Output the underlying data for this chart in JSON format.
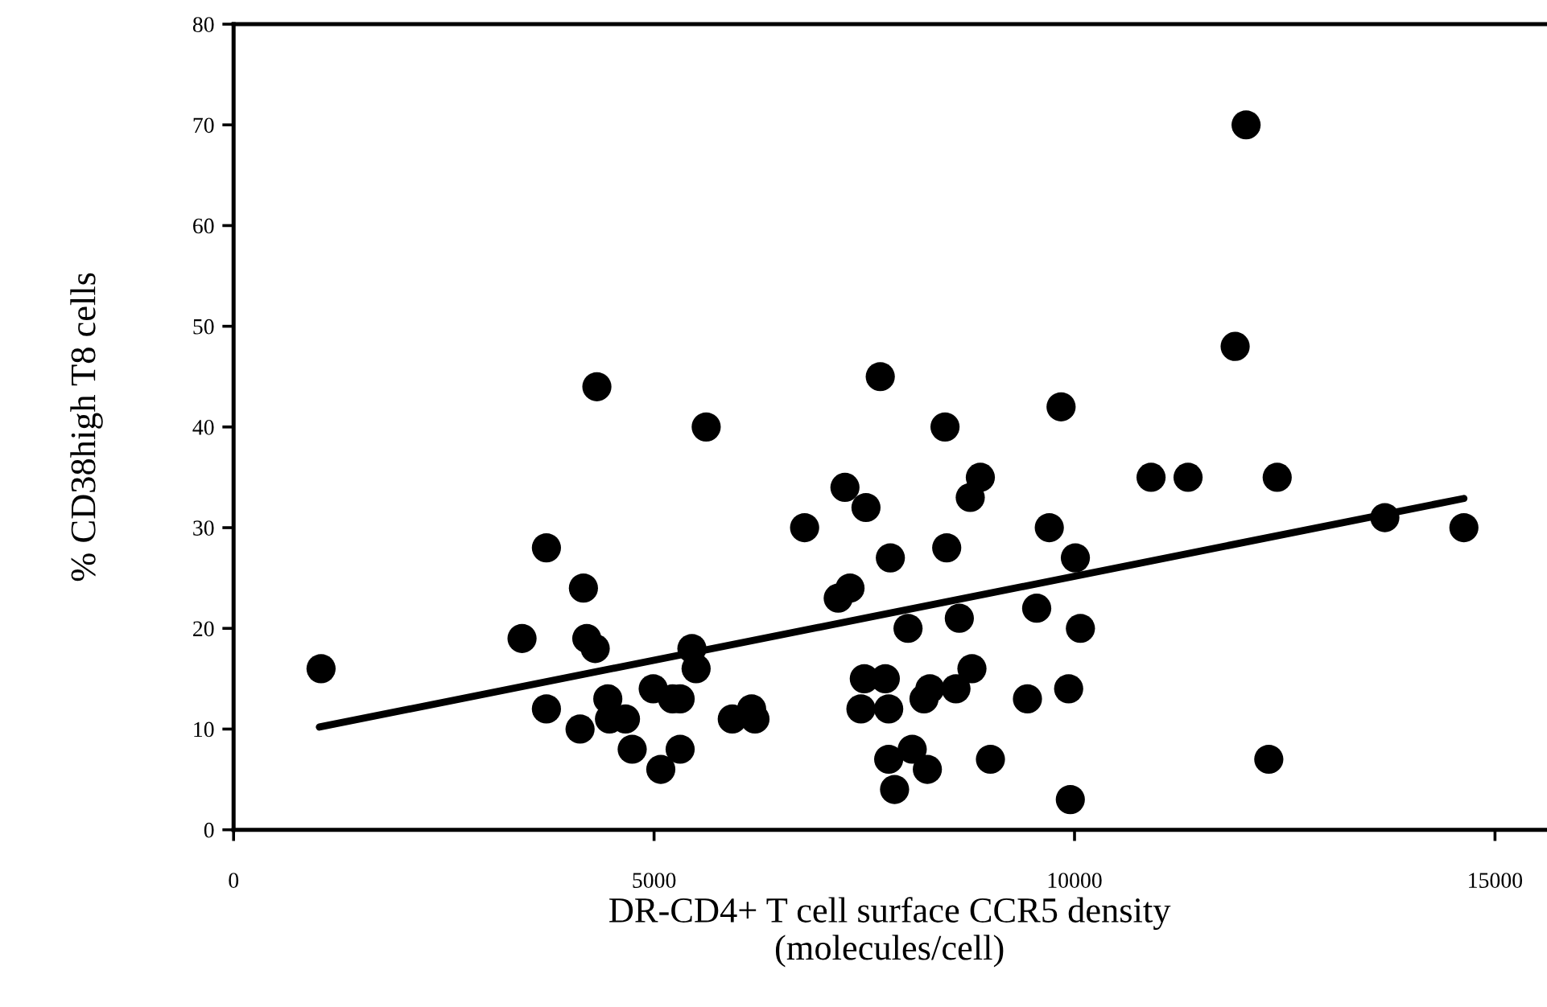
{
  "chart_data": {
    "type": "scatter",
    "xlabel": "DR-CD4+ T cell surface CCR5 density\n(molecules/cell)",
    "ylabel": "% CD38high T8 cells",
    "xlim": [
      0,
      15600
    ],
    "ylim": [
      0,
      80
    ],
    "xticks": [
      0,
      5000,
      10000,
      15000
    ],
    "yticks": [
      0,
      10,
      20,
      30,
      40,
      50,
      60,
      70,
      80
    ],
    "grid": false,
    "series": [
      {
        "marker": "circle",
        "color": "#000000",
        "x": [
          1040,
          3720,
          4160,
          3430,
          4200,
          4300,
          3720,
          4120,
          4450,
          4470,
          4660,
          4740,
          5080,
          4990,
          5220,
          5310,
          5310,
          5450,
          5500,
          5930,
          6160,
          6200,
          6790,
          7270,
          7520,
          7810,
          7190,
          7330,
          7500,
          7750,
          7460,
          7790,
          7790,
          7860,
          4320,
          5620,
          7690,
          8460,
          9840,
          11910,
          12040,
          8880,
          8760,
          8480,
          9700,
          10010,
          10910,
          11350,
          12410,
          13690,
          14630,
          8020,
          8630,
          9550,
          10070,
          8280,
          8210,
          8590,
          8780,
          9440,
          9930,
          8070,
          8250,
          9000,
          9950,
          12310
        ],
        "values": [
          16,
          28,
          24,
          19,
          19,
          18,
          12,
          10,
          13,
          11,
          11,
          8,
          6,
          14,
          13,
          13,
          8,
          18,
          16,
          11,
          12,
          11,
          30,
          34,
          32,
          27,
          23,
          24,
          15,
          15,
          12,
          12,
          7,
          4,
          44,
          40,
          45,
          40,
          42,
          48,
          70,
          35,
          33,
          28,
          30,
          27,
          35,
          35,
          35,
          31,
          30,
          20,
          21,
          22,
          20,
          14,
          13,
          14,
          16,
          13,
          14,
          8,
          6,
          7,
          3,
          7
        ]
      },
      {
        "type": "line",
        "marker": "none",
        "color": "#000000",
        "x": [
          1020,
          14630
        ],
        "values": [
          10.2,
          32.9
        ]
      }
    ]
  }
}
